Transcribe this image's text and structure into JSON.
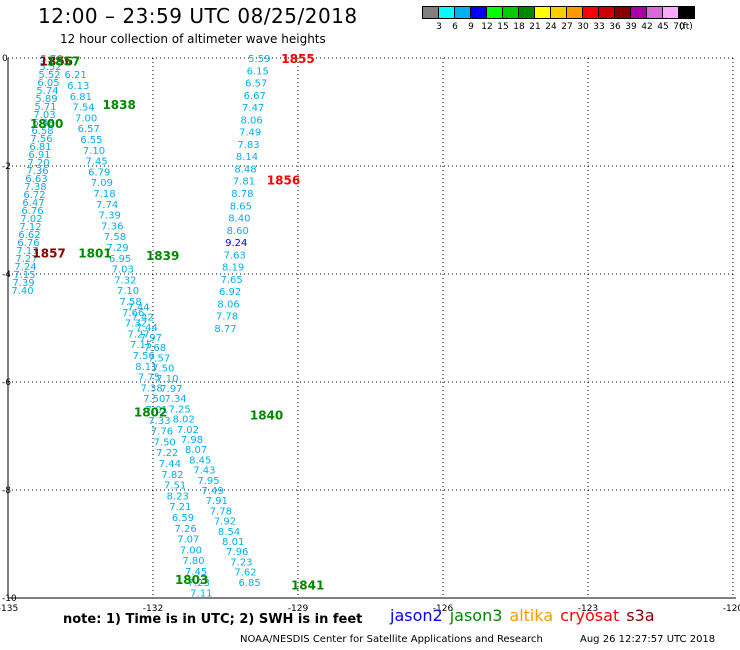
{
  "header": {
    "title": "12:00 – 23:59 UTC 08/25/2018",
    "subtitle": "12 hour collection of altimeter wave heights"
  },
  "legend": {
    "unit": "(ft)",
    "entries": [
      {
        "label": "3",
        "color": "#808080"
      },
      {
        "label": "6",
        "color": "#00ffff"
      },
      {
        "label": "9",
        "color": "#00b0f0"
      },
      {
        "label": "12",
        "color": "#0000ff"
      },
      {
        "label": "15",
        "color": "#00ff00"
      },
      {
        "label": "18",
        "color": "#00cc00"
      },
      {
        "label": "21",
        "color": "#008800"
      },
      {
        "label": "24",
        "color": "#ffff00"
      },
      {
        "label": "27",
        "color": "#ffcc00"
      },
      {
        "label": "30",
        "color": "#ff9900"
      },
      {
        "label": "33",
        "color": "#ff0000"
      },
      {
        "label": "36",
        "color": "#cc0000"
      },
      {
        "label": "39",
        "color": "#880000"
      },
      {
        "label": "42",
        "color": "#aa00aa"
      },
      {
        "label": "45",
        "color": "#dd66dd"
      },
      {
        "label": "70",
        "color": "#ffaaff"
      },
      {
        "label": "",
        "color": "#000000"
      }
    ]
  },
  "axes": {
    "lon_ticks": [
      "-135",
      "-132",
      "-129",
      "-126",
      "-123",
      "-120"
    ],
    "lat_ticks": [
      "0",
      "-2",
      "-4",
      "-6",
      "-8",
      "-10"
    ]
  },
  "footer": {
    "note": "note: 1) Time is in UTC; 2) SWH is in feet",
    "credit": "NOAA/NESDIS Center for Satellite Applications and Research",
    "timestamp": "Aug 26 12:27:57 UTC 2018"
  },
  "satellites": [
    {
      "name": "jason2",
      "color": "#0000ff"
    },
    {
      "name": "jason3",
      "color": "#008800"
    },
    {
      "name": "altika",
      "color": "#ff9900"
    },
    {
      "name": "cryosat",
      "color": "#ff0000"
    },
    {
      "name": "s3a",
      "color": "#880000"
    }
  ],
  "colors": {
    "obs": "#00b0f0",
    "jason3": "#008800",
    "cryosat": "#ff0000",
    "s3a": "#880000",
    "jason2": "#0000ff"
  },
  "tracks": [
    {
      "lon_start": -134.1,
      "lat_start": 0.0,
      "lon_end": -134.7,
      "lat_end": -4.3,
      "values": [
        "5.76",
        "5.52",
        "5.52",
        "6.05",
        "5.74",
        "5.89",
        "5.71",
        "7.03",
        "6.48",
        "6.58",
        "7.56",
        "6.81",
        "6.91",
        "7.20",
        "7.36",
        "6.63",
        "7.38",
        "6.72",
        "6.47",
        "6.76",
        "7.02",
        "7.12",
        "6.62",
        "6.76",
        "7.17",
        "7.27",
        "7.24",
        "7.15",
        "7.39",
        "7.40"
      ]
    },
    {
      "lon_start": -133.6,
      "lat_start": -0.3,
      "lon_end": -131.0,
      "lat_end": -9.9,
      "values": [
        "6.21",
        "6.13",
        "6.81",
        "7.54",
        "7.00",
        "6.57",
        "6.55",
        "7.10",
        "7.45",
        "6.79",
        "7.09",
        "7.18",
        "7.74",
        "7.39",
        "7.36",
        "7.58",
        "7.29",
        "6.95",
        "7.03",
        "7.32",
        "7.10",
        "7.58",
        "7.66",
        "7.32",
        "7.27",
        "7.15",
        "7.56",
        "8.11",
        "7.75",
        "7.38",
        "7.50",
        "7.01",
        "7.33",
        "7.76",
        "7.50",
        "7.22",
        "7.44",
        "7.82",
        "7.51",
        "8.23",
        "7.21",
        "6.59",
        "7.26",
        "7.07",
        "7.00",
        "7.80",
        "7.45",
        "7.23",
        "7.11"
      ]
    },
    {
      "lon_start": -132.3,
      "lat_start": -4.6,
      "lon_end": -130.0,
      "lat_end": -9.7,
      "values": [
        "7.44",
        "7.42",
        "7.44",
        "7.97",
        "7.68",
        "7.57",
        "7.50",
        "7.10",
        "7.97",
        "7.34",
        "7.25",
        "8.02",
        "7.02",
        "7.98",
        "8.07",
        "8.45",
        "7.43",
        "7.95",
        "7.49",
        "7.91",
        "7.78",
        "7.92",
        "8.54",
        "8.01",
        "7.96",
        "7.23",
        "7.62",
        "6.85"
      ]
    },
    {
      "lon_start": -129.8,
      "lat_start": 0.0,
      "lon_end": -130.5,
      "lat_end": -5.0,
      "values": [
        "5.59",
        "6.15",
        "6.57",
        "6.67",
        "7.47",
        "8.06",
        "7.49",
        "7.83",
        "8.14",
        "8.48",
        "7.81",
        "8.78",
        "8.65",
        "8.40",
        "8.60",
        "9.24",
        "7.63",
        "8.19",
        "7.65",
        "6.92",
        "8.06",
        "7.78",
        "8.77"
      ]
    }
  ],
  "time_labels": [
    {
      "text": "1856",
      "sat": "s3a",
      "lon": -134.0,
      "lat": -0.05
    },
    {
      "text": "1857",
      "sat": "jason3",
      "lon": -133.85,
      "lat": -0.05
    },
    {
      "text": "1838",
      "sat": "jason3",
      "lon": -132.7,
      "lat": -0.85
    },
    {
      "text": "1800",
      "sat": "jason3",
      "lon": -134.2,
      "lat": -1.2
    },
    {
      "text": "1857",
      "sat": "s3a",
      "lon": -134.15,
      "lat": -3.6
    },
    {
      "text": "1801",
      "sat": "jason3",
      "lon": -133.2,
      "lat": -3.6
    },
    {
      "text": "1839",
      "sat": "jason3",
      "lon": -131.8,
      "lat": -3.65
    },
    {
      "text": "1855",
      "sat": "cryosat",
      "lon": -129.0,
      "lat": 0.0
    },
    {
      "text": "1856",
      "sat": "cryosat",
      "lon": -129.3,
      "lat": -2.25
    },
    {
      "text": "1802",
      "sat": "jason3",
      "lon": -132.05,
      "lat": -6.55
    },
    {
      "text": "1840",
      "sat": "jason3",
      "lon": -129.65,
      "lat": -6.6
    },
    {
      "text": "1803",
      "sat": "jason3",
      "lon": -131.2,
      "lat": -9.65
    },
    {
      "text": "1841",
      "sat": "jason3",
      "lon": -128.8,
      "lat": -9.75
    }
  ]
}
